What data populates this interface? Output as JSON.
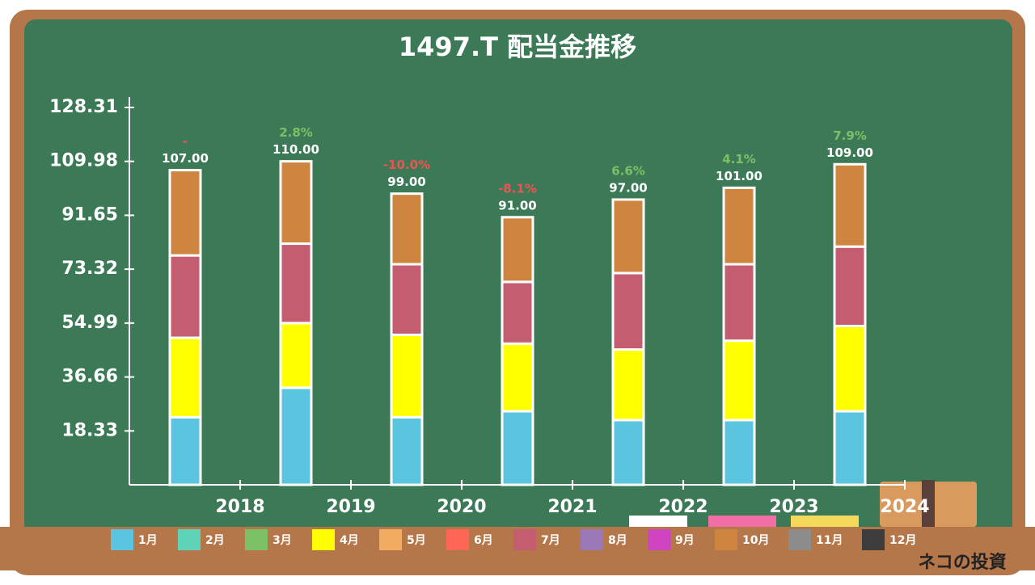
{
  "chart_data": {
    "type": "stacked-bar",
    "title": "1497.T 配当金推移",
    "categories": [
      "2018",
      "2019",
      "2020",
      "2021",
      "2022",
      "2023",
      "2024"
    ],
    "series": [
      {
        "name": "1月",
        "color": "#5bc5e0",
        "values": [
          23,
          33,
          23,
          25,
          22,
          22,
          25
        ]
      },
      {
        "name": "2月",
        "color": "#5ed3b8",
        "values": [
          0,
          0,
          0,
          0,
          0,
          0,
          0
        ]
      },
      {
        "name": "3月",
        "color": "#7cc164",
        "values": [
          0,
          0,
          0,
          0,
          0,
          0,
          0
        ]
      },
      {
        "name": "4月",
        "color": "#ffff00",
        "values": [
          27,
          22,
          28,
          23,
          24,
          27,
          29
        ]
      },
      {
        "name": "5月",
        "color": "#f2ad62",
        "values": [
          0,
          0,
          0,
          0,
          0,
          0,
          0
        ]
      },
      {
        "name": "6月",
        "color": "#ff6655",
        "values": [
          0,
          0,
          0,
          0,
          0,
          0,
          0
        ]
      },
      {
        "name": "7月",
        "color": "#c55d70",
        "values": [
          28,
          27,
          24,
          21,
          26,
          26,
          27
        ]
      },
      {
        "name": "8月",
        "color": "#9a78b8",
        "values": [
          0,
          0,
          0,
          0,
          0,
          0,
          0
        ]
      },
      {
        "name": "9月",
        "color": "#d044c4",
        "values": [
          0,
          0,
          0,
          0,
          0,
          0,
          0
        ]
      },
      {
        "name": "10月",
        "color": "#cd853f",
        "values": [
          29,
          28,
          24,
          22,
          25,
          26,
          28
        ]
      },
      {
        "name": "11月",
        "color": "#8c8c8c",
        "values": [
          0,
          0,
          0,
          0,
          0,
          0,
          0
        ]
      },
      {
        "name": "12月",
        "color": "#3d3d3d",
        "values": [
          0,
          0,
          0,
          0,
          0,
          0,
          0
        ]
      }
    ],
    "totals": [
      107,
      110,
      99,
      91,
      97,
      101,
      109
    ],
    "total_labels": [
      "107.00",
      "110.00",
      "99.00",
      "91.00",
      "97.00",
      "101.00",
      "109.00"
    ],
    "growth": [
      null,
      2.8,
      -10.0,
      -8.1,
      6.6,
      4.1,
      7.9
    ],
    "growth_labels": [
      "-",
      "2.8%",
      "-10.0%",
      "-8.1%",
      "6.6%",
      "4.1%",
      "7.9%"
    ],
    "ylim": [
      0,
      128.31
    ],
    "yticks": [
      18.33,
      36.66,
      54.99,
      73.32,
      91.65,
      109.98,
      128.31
    ]
  },
  "watermark": "ネコの投資"
}
